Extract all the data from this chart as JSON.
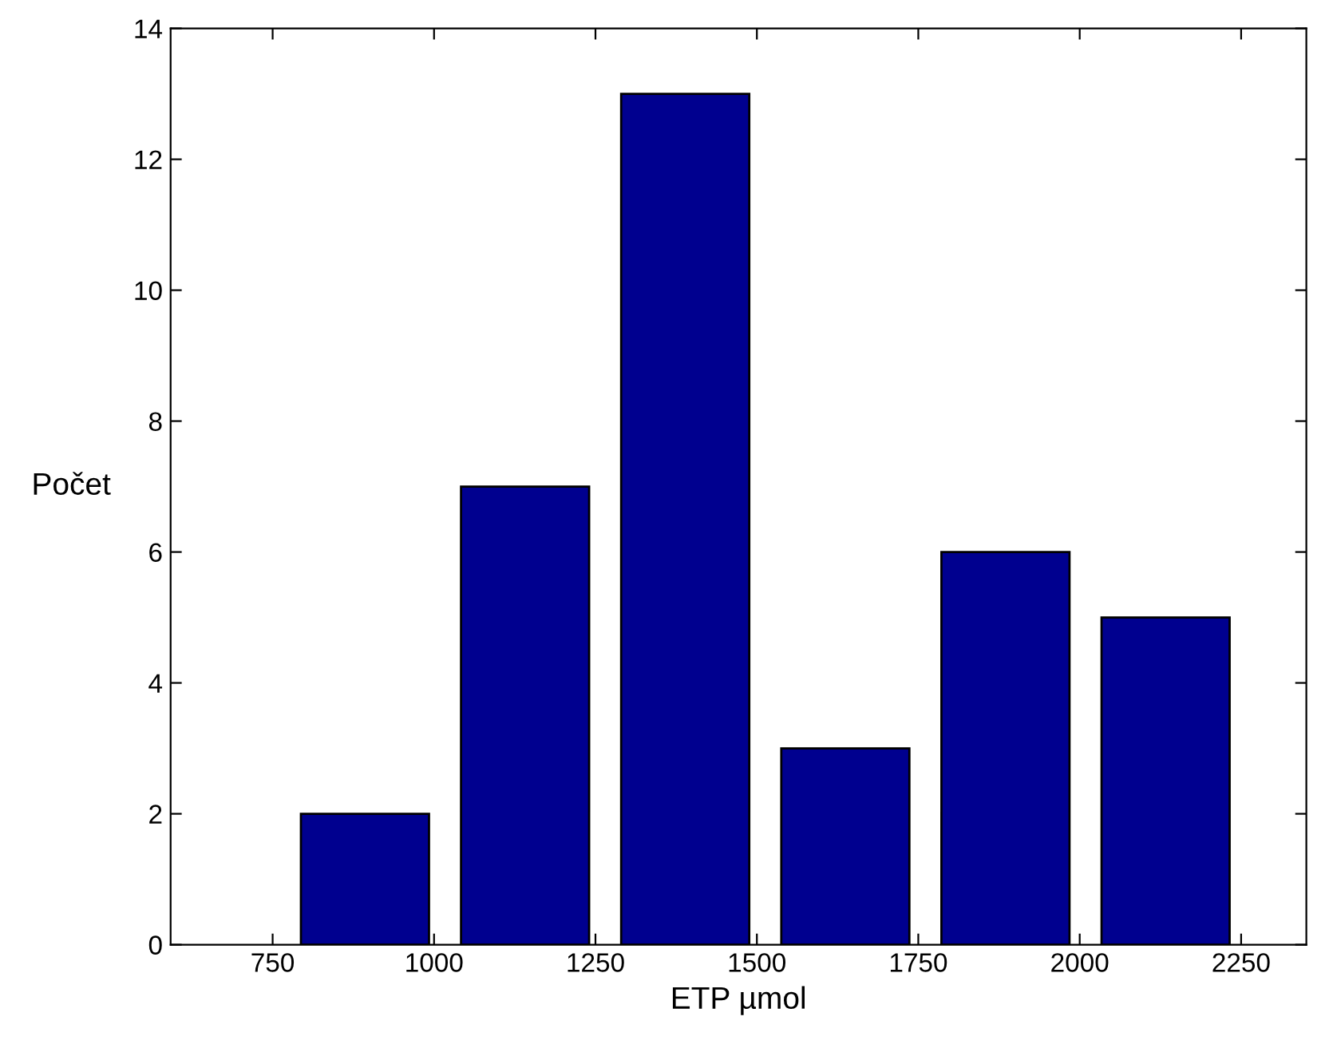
{
  "chart_data": {
    "type": "histogram",
    "xlabel": "ETP µmol",
    "ylabel": "Počet",
    "bins": [
      769,
      1017,
      1265,
      1513,
      1761,
      2009,
      2257
    ],
    "values": [
      2,
      7,
      13,
      3,
      6,
      5
    ],
    "color": "#00008f",
    "xlim": [
      592,
      2351
    ],
    "xticks": [
      750,
      1000,
      1250,
      1500,
      1750,
      2000,
      2250
    ],
    "ylim": [
      0,
      14
    ],
    "yticks": [
      0,
      2,
      4,
      6,
      8,
      10,
      12,
      14
    ],
    "grid": false
  }
}
